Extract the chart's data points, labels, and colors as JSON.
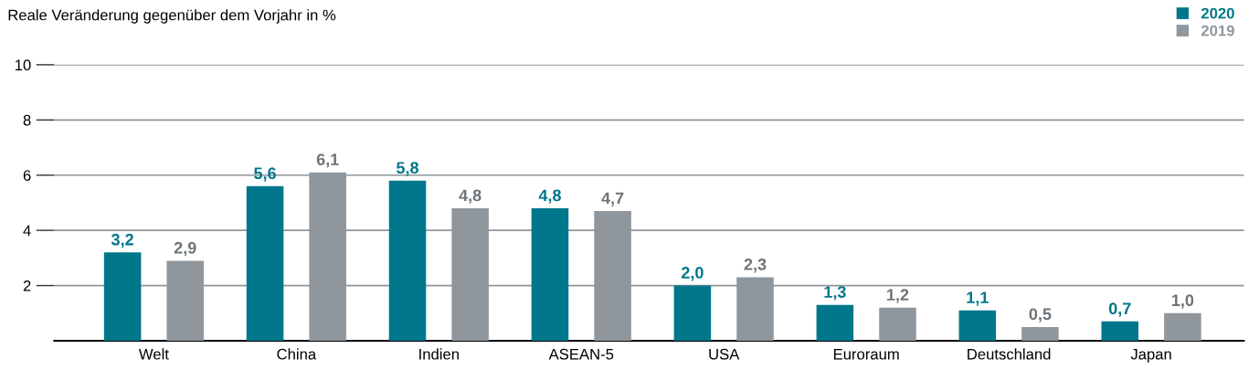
{
  "chart_data": {
    "type": "bar",
    "ylabel": "Reale Veränderung gegenüber dem Vorjahr in %",
    "categories": [
      "Welt",
      "China",
      "Indien",
      "ASEAN-5",
      "USA",
      "Euroraum",
      "Deutschland",
      "Japan"
    ],
    "series": [
      {
        "name": "2020",
        "color": "#00778a",
        "values": [
          3.2,
          5.6,
          5.8,
          4.8,
          2.0,
          1.3,
          1.1,
          0.7
        ],
        "value_labels": [
          "3,2",
          "5,6",
          "5,8",
          "4,8",
          "2,0",
          "1,3",
          "1,1",
          "0,7"
        ]
      },
      {
        "name": "2019",
        "color": "#8f969c",
        "values": [
          2.9,
          6.1,
          4.8,
          4.7,
          2.3,
          1.2,
          0.5,
          1.0
        ],
        "value_labels": [
          "2,9",
          "6,1",
          "4,8",
          "4,7",
          "2,3",
          "1,2",
          "0,5",
          "1,0"
        ]
      }
    ],
    "ylim": [
      0,
      10
    ],
    "yticks": [
      2,
      4,
      6,
      8,
      10
    ],
    "grid": "y",
    "legend": "top right"
  }
}
